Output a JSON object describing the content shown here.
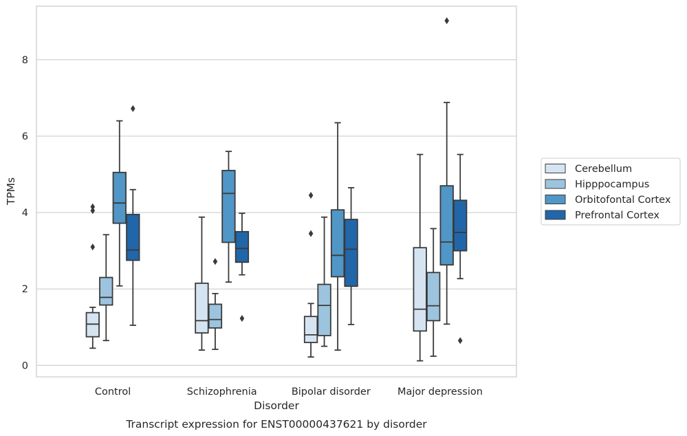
{
  "chart_data": {
    "type": "boxplot",
    "title": "Transcript expression for ENST00000437621 by disorder",
    "xlabel": "Disorder",
    "ylabel": "TPMs",
    "categories": [
      "Control",
      "Schizophrenia",
      "Bipolar disorder",
      "Major depression"
    ],
    "yticks": [
      "0",
      "2",
      "4",
      "6",
      "8"
    ],
    "ylim": [
      -0.3,
      9.4
    ],
    "grid": "horizontal",
    "legend_position": "right",
    "series": [
      {
        "name": "Cerebellum",
        "color": "#d6e4f2",
        "boxes": [
          {
            "whislo": 0.45,
            "q1": 0.75,
            "med": 1.08,
            "q3": 1.38,
            "whishi": 1.52,
            "fliers": [
              3.1,
              4.05,
              4.15
            ]
          },
          {
            "whislo": 0.4,
            "q1": 0.85,
            "med": 1.17,
            "q3": 2.15,
            "whishi": 3.88,
            "fliers": []
          },
          {
            "whislo": 0.22,
            "q1": 0.6,
            "med": 0.8,
            "q3": 1.28,
            "whishi": 1.62,
            "fliers": [
              3.45,
              4.45
            ]
          },
          {
            "whislo": 0.12,
            "q1": 0.9,
            "med": 1.47,
            "q3": 3.08,
            "whishi": 5.52,
            "fliers": []
          }
        ]
      },
      {
        "name": "Hipppocampus",
        "color": "#9dc4de",
        "boxes": [
          {
            "whislo": 0.65,
            "q1": 1.58,
            "med": 1.78,
            "q3": 2.3,
            "whishi": 3.42,
            "fliers": []
          },
          {
            "whislo": 0.42,
            "q1": 0.98,
            "med": 1.2,
            "q3": 1.6,
            "whishi": 1.88,
            "fliers": [
              2.72
            ]
          },
          {
            "whislo": 0.5,
            "q1": 0.78,
            "med": 1.57,
            "q3": 2.12,
            "whishi": 3.88,
            "fliers": []
          },
          {
            "whislo": 0.24,
            "q1": 1.17,
            "med": 1.56,
            "q3": 2.43,
            "whishi": 3.58,
            "fliers": []
          }
        ]
      },
      {
        "name": "Orbitofontal Cortex",
        "color": "#5096c6",
        "boxes": [
          {
            "whislo": 2.08,
            "q1": 3.72,
            "med": 4.25,
            "q3": 5.05,
            "whishi": 6.4,
            "fliers": []
          },
          {
            "whislo": 2.18,
            "q1": 3.22,
            "med": 4.5,
            "q3": 5.1,
            "whishi": 5.6,
            "fliers": []
          },
          {
            "whislo": 0.4,
            "q1": 2.32,
            "med": 2.88,
            "q3": 4.07,
            "whishi": 6.35,
            "fliers": []
          },
          {
            "whislo": 1.08,
            "q1": 2.63,
            "med": 3.23,
            "q3": 4.7,
            "whishi": 6.88,
            "fliers": [
              9.02
            ]
          }
        ]
      },
      {
        "name": "Prefrontal Cortex",
        "color": "#2266aa",
        "boxes": [
          {
            "whislo": 1.05,
            "q1": 2.75,
            "med": 3.02,
            "q3": 3.95,
            "whishi": 4.6,
            "fliers": [
              6.72
            ]
          },
          {
            "whislo": 2.37,
            "q1": 2.7,
            "med": 3.06,
            "q3": 3.5,
            "whishi": 3.98,
            "fliers": [
              1.23
            ]
          },
          {
            "whislo": 1.07,
            "q1": 2.07,
            "med": 3.04,
            "q3": 3.82,
            "whishi": 4.65,
            "fliers": []
          },
          {
            "whislo": 2.27,
            "q1": 3.0,
            "med": 3.48,
            "q3": 4.32,
            "whishi": 5.52,
            "fliers": [
              0.65
            ]
          }
        ]
      }
    ]
  }
}
